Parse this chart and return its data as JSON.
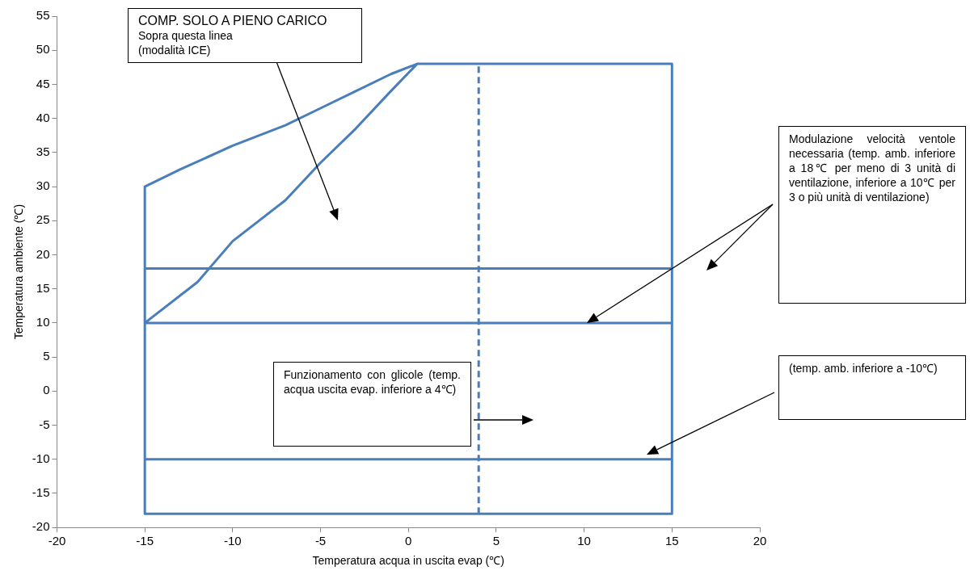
{
  "chart_data": {
    "type": "line",
    "xlabel": "Temperatura acqua in uscita evap (℃)",
    "ylabel": "Temperatura ambiente (℃)",
    "xlim": [
      -20,
      20
    ],
    "xticks": [
      -20,
      -15,
      -10,
      -5,
      0,
      5,
      10,
      15,
      20
    ],
    "ylim": [
      -20,
      55
    ],
    "yticks": [
      -20,
      -15,
      -10,
      -5,
      0,
      5,
      10,
      15,
      20,
      25,
      30,
      35,
      40,
      45,
      50,
      55
    ],
    "marker": "none",
    "series": [
      {
        "color": "#4a7ebb",
        "x": [
          -15,
          -15,
          15,
          15,
          0.5,
          -1,
          -3,
          -5,
          -7,
          -10,
          -13,
          -15,
          -15,
          -12,
          -10,
          -7,
          -5,
          -3,
          -1,
          0.5,
          15,
          15,
          -15,
          -15,
          15,
          15,
          -15
        ],
        "values": [
          30,
          -18,
          -18,
          48,
          48,
          46.5,
          44,
          41.5,
          39,
          36,
          32.5,
          30,
          10,
          16,
          22,
          28,
          33.5,
          38.5,
          44,
          48,
          48,
          18,
          18,
          10,
          10,
          -10,
          -10
        ]
      },
      {
        "color": "#4a7ebb",
        "x": [
          4,
          4
        ],
        "values": [
          -18,
          48
        ],
        "line_style": "dashed"
      }
    ],
    "annotations": [
      "COMP. SOLO A PIENO CARICO\nSopra questa linea\n(modalità ICE)",
      "Modulazione velocità ventole necessaria (temp. amb. inferiore a 18℃ per meno di 3 unità di ventilazione, inferiore a 10℃ per 3 o più unità di ventilazione)",
      "Funzionamento con glicole (temp. acqua uscita evap. inferiore a 4℃)",
      "(temp. amb. inferiore a -10℃)"
    ]
  }
}
